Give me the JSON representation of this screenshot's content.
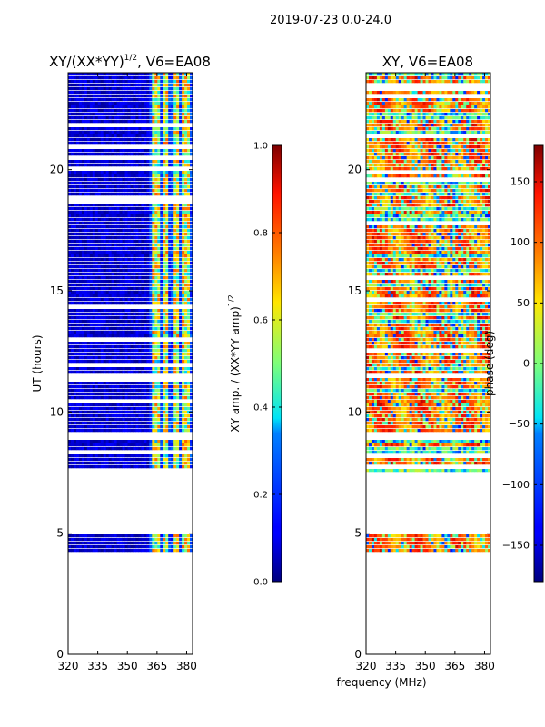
{
  "figure_title": "2019-07-23 0.0-24.0",
  "shared_xlabel": "frequency (MHz)",
  "chart_data": [
    {
      "type": "heatmap",
      "title_main": "XY/(XX*YY)",
      "title_sup": "1/2",
      "title_tail": ", V6=EA08",
      "ylabel": "UT (hours)",
      "xlim": [
        320,
        383
      ],
      "ylim": [
        0,
        24
      ],
      "xticks": [
        "320",
        "335",
        "350",
        "365",
        "380"
      ],
      "yticks": [
        "0",
        "5",
        "10",
        "15",
        "20"
      ],
      "colorbar": {
        "label_main": "XY amp. / (XX*YY amp)",
        "label_sup": "1/2",
        "range": [
          0.0,
          1.0
        ],
        "ticks": [
          "0.0",
          "0.2",
          "0.4",
          "0.6",
          "0.8",
          "1.0"
        ]
      },
      "data_hour_ranges": [
        [
          4.2,
          5.0
        ],
        [
          7.5,
          11.4
        ],
        [
          11.6,
          21.4
        ],
        [
          21.5,
          24.0
        ]
      ],
      "hot_freq_bands_mhz": [
        [
          362,
          366
        ],
        [
          368,
          371
        ],
        [
          373,
          376
        ],
        [
          378,
          381
        ]
      ]
    },
    {
      "type": "heatmap",
      "title": "XY, V6=EA08",
      "ylabel": "",
      "xlim": [
        320,
        383
      ],
      "ylim": [
        0,
        24
      ],
      "xticks": [
        "320",
        "335",
        "350",
        "365",
        "380"
      ],
      "yticks": [
        "0",
        "5",
        "10",
        "15",
        "20"
      ],
      "colorbar": {
        "label": "phase (deg)",
        "range": [
          -180,
          180
        ],
        "ticks": [
          "−150",
          "−100",
          "−50",
          "0",
          "50",
          "100",
          "150"
        ]
      },
      "data_hour_ranges": [
        [
          4.2,
          5.0
        ],
        [
          7.5,
          11.4
        ],
        [
          11.6,
          21.4
        ],
        [
          21.5,
          24.0
        ]
      ]
    }
  ]
}
